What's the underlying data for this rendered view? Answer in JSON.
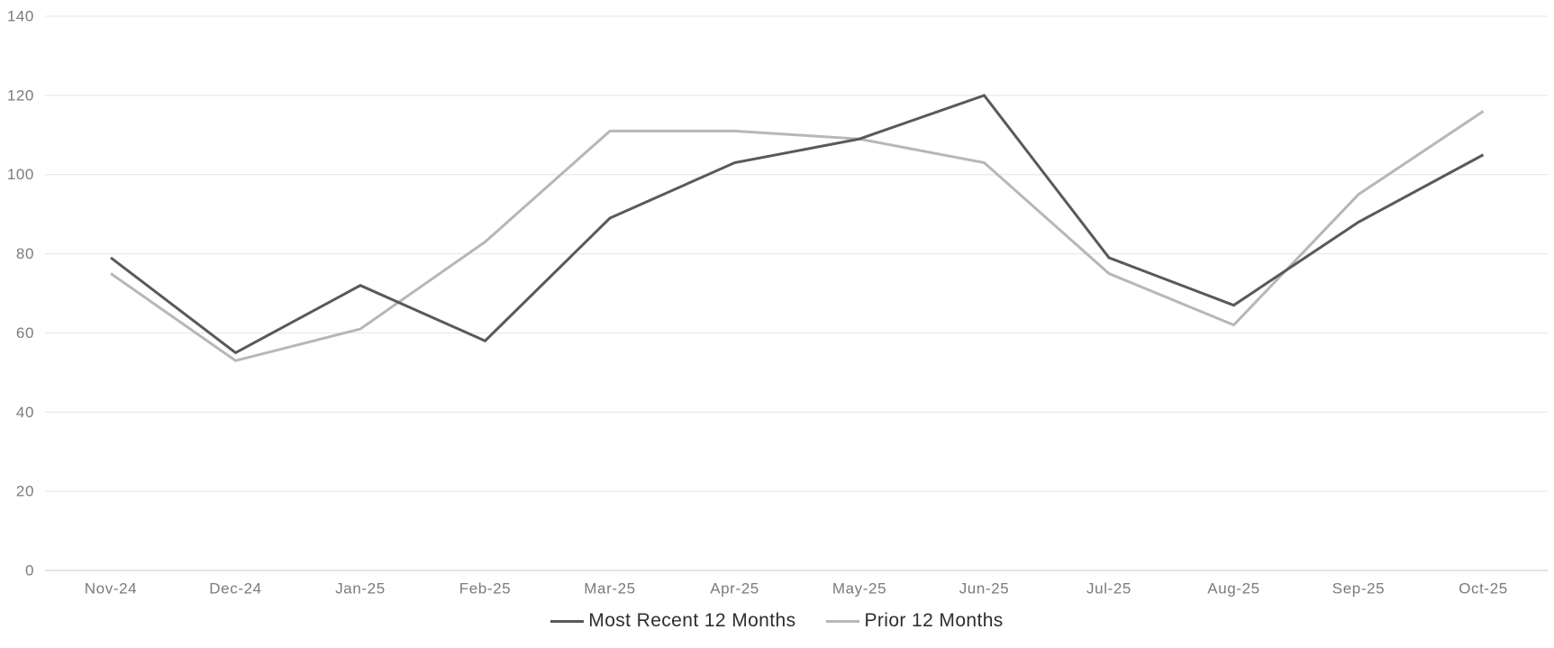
{
  "chart_data": {
    "type": "line",
    "title": "",
    "categories": [
      "Nov-24",
      "Dec-24",
      "Jan-25",
      "Feb-25",
      "Mar-25",
      "Apr-25",
      "May-25",
      "Jun-25",
      "Jul-25",
      "Aug-25",
      "Sep-25",
      "Oct-25"
    ],
    "series": [
      {
        "name": "Most Recent 12 Months",
        "color": "#595959",
        "values": [
          79,
          55,
          72,
          58,
          89,
          103,
          109,
          120,
          79,
          67,
          88,
          105
        ]
      },
      {
        "name": "Prior 12 Months",
        "color": "#b7b7b7",
        "values": [
          75,
          53,
          61,
          83,
          111,
          111,
          109,
          103,
          75,
          62,
          95,
          116
        ]
      }
    ],
    "y_ticks": [
      0,
      20,
      40,
      60,
      80,
      100,
      120,
      140
    ],
    "ylim": [
      0,
      140
    ],
    "xlabel": "",
    "ylabel": "",
    "grid": true,
    "legend_position": "bottom-center"
  },
  "colors": {
    "background": "#ffffff",
    "gridline": "#e4e4e4",
    "axis_line": "#c8c8c8",
    "tick_label_text": "#7b7b7b",
    "legend_text": "#2e2e2e",
    "series_most_recent": "#595959",
    "series_prior": "#b7b7b7"
  }
}
